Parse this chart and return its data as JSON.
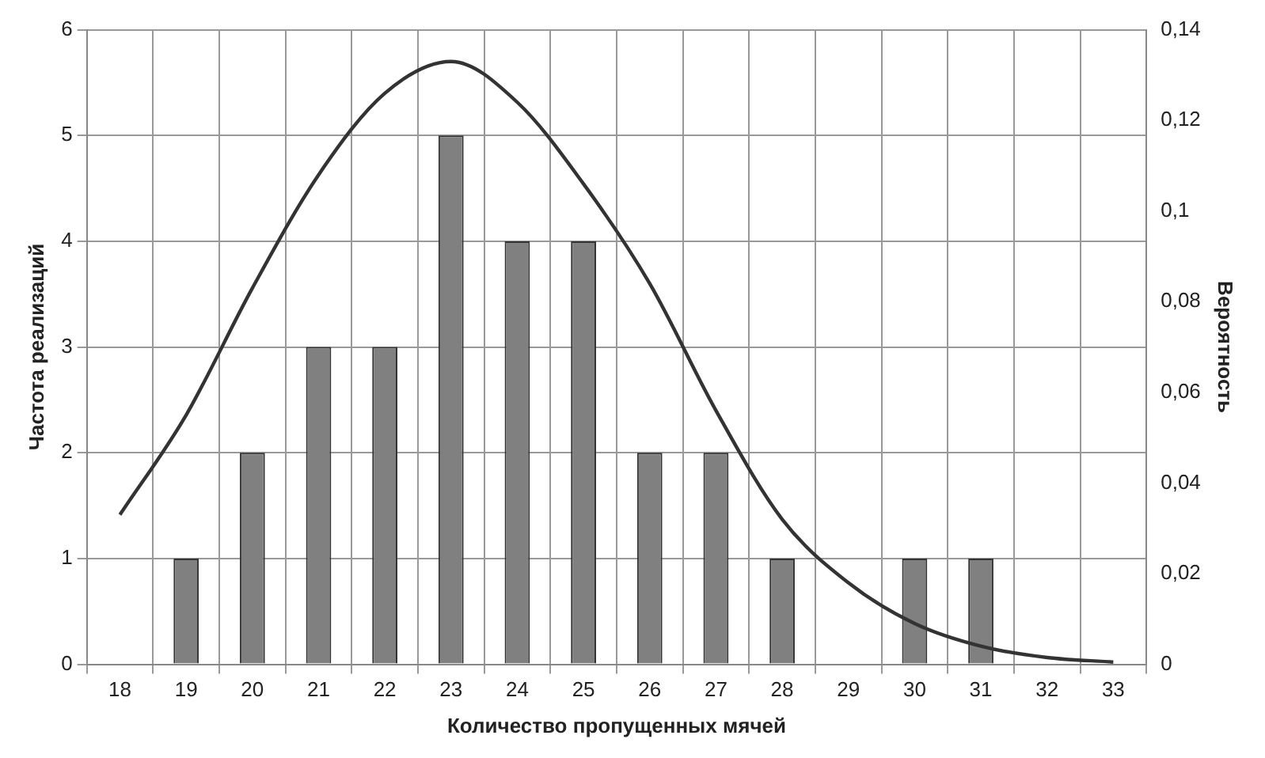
{
  "chart_data": {
    "type": "bar",
    "xlabel": "Количество пропущенных мячей",
    "ylabel": "Частота реализаций",
    "y2label": "Вероятность",
    "categories": [
      "18",
      "19",
      "20",
      "21",
      "22",
      "23",
      "24",
      "25",
      "26",
      "27",
      "28",
      "29",
      "30",
      "31",
      "32",
      "33"
    ],
    "series": [
      {
        "color": "#808080",
        "values": [
          0,
          1,
          2,
          3,
          3,
          5,
          4,
          4,
          2,
          2,
          1,
          0,
          1,
          1,
          0,
          0
        ]
      },
      {
        "type": "line",
        "axis": "y2",
        "color": "#333333",
        "marker": "none",
        "values": [
          0.033,
          0.055,
          0.083,
          0.108,
          0.126,
          0.133,
          0.124,
          0.106,
          0.084,
          0.056,
          0.032,
          0.018,
          0.009,
          0.004,
          0.0015,
          0.0005
        ]
      }
    ],
    "ylim": [
      0,
      6
    ],
    "yticks": [
      0,
      1,
      2,
      3,
      4,
      5,
      6
    ],
    "y2lim": [
      0,
      0.14
    ],
    "y2ticks": [
      {
        "value": 0,
        "label": "0"
      },
      {
        "value": 0.02,
        "label": "0,02"
      },
      {
        "value": 0.04,
        "label": "0,04"
      },
      {
        "value": 0.06,
        "label": "0,06"
      },
      {
        "value": 0.08,
        "label": "0,08"
      },
      {
        "value": 0.1,
        "label": "0,1"
      },
      {
        "value": 0.12,
        "label": "0,12"
      },
      {
        "value": 0.14,
        "label": "0,14"
      }
    ],
    "grid": true,
    "legend": false
  }
}
